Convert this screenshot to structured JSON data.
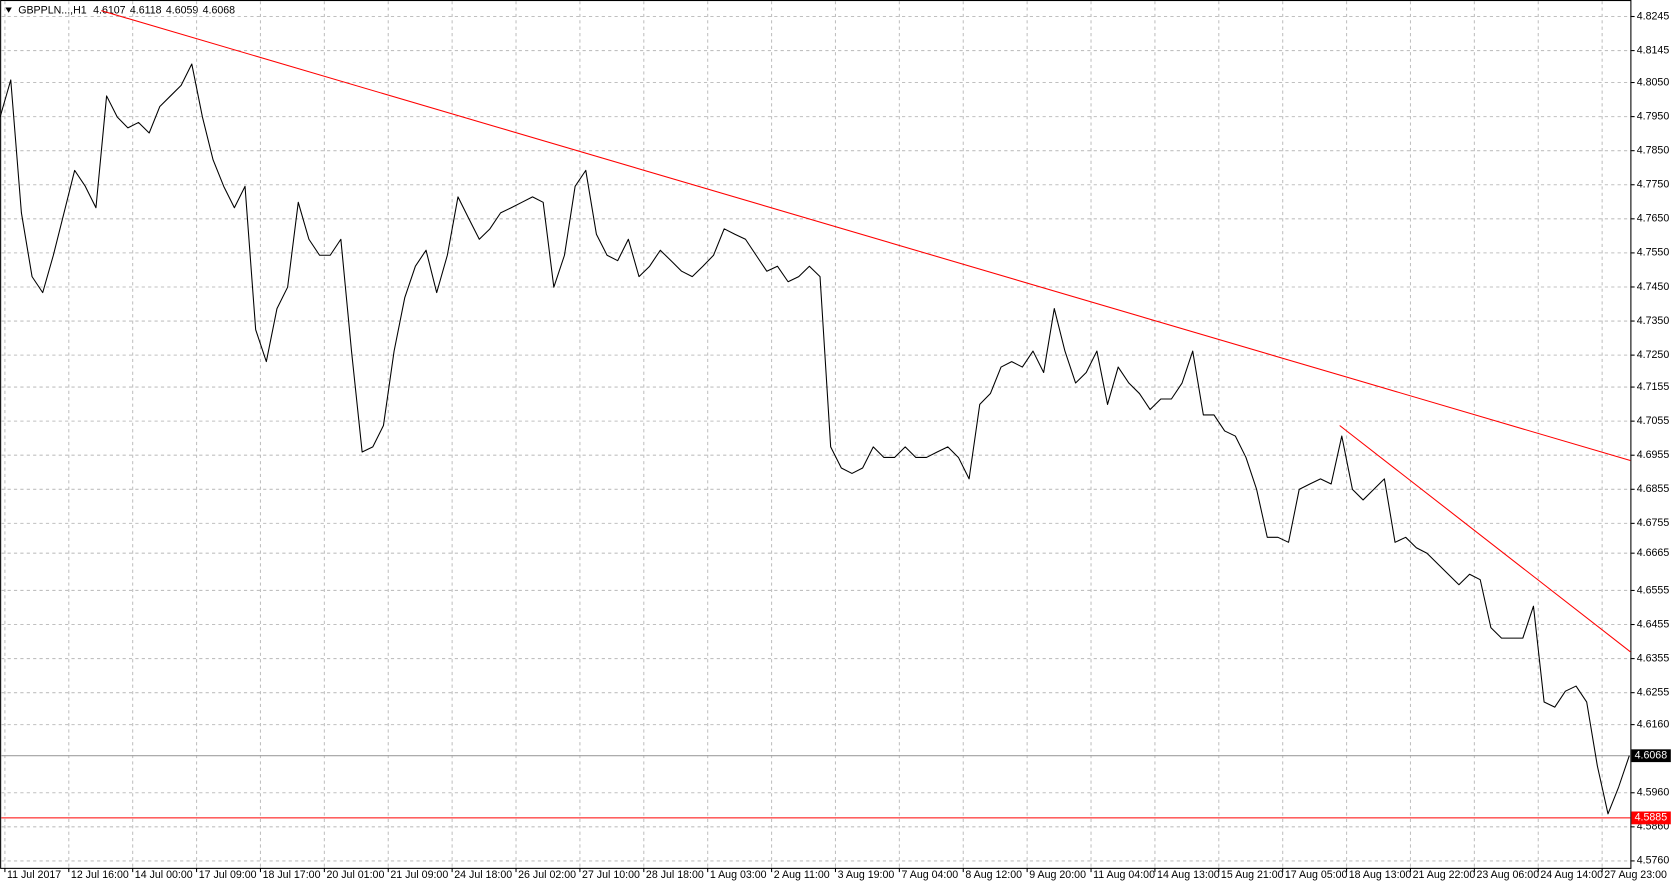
{
  "chart_data": {
    "type": "line",
    "title": "GBPPLN...,H1",
    "ohlc": [
      4.6107,
      4.6118,
      4.6059,
      4.6068
    ],
    "grid": true,
    "xlim": [
      0,
      153
    ],
    "ylim": [
      4.5738,
      4.8283
    ],
    "yticks": [
      {
        "value": 4.8245,
        "label": "4.8245"
      },
      {
        "value": 4.8145,
        "label": "4.8145"
      },
      {
        "value": 4.805,
        "label": "4.8050"
      },
      {
        "value": 4.795,
        "label": "4.7950"
      },
      {
        "value": 4.785,
        "label": "4.7850"
      },
      {
        "value": 4.775,
        "label": "4.7750"
      },
      {
        "value": 4.765,
        "label": "4.7650"
      },
      {
        "value": 4.755,
        "label": "4.7550"
      },
      {
        "value": 4.745,
        "label": "4.7450"
      },
      {
        "value": 4.735,
        "label": "4.7350"
      },
      {
        "value": 4.725,
        "label": "4.7250"
      },
      {
        "value": 4.7155,
        "label": "4.7155"
      },
      {
        "value": 4.7055,
        "label": "4.7055"
      },
      {
        "value": 4.6955,
        "label": "4.6955"
      },
      {
        "value": 4.6855,
        "label": "4.6855"
      },
      {
        "value": 4.6755,
        "label": "4.6755"
      },
      {
        "value": 4.6665,
        "label": "4.6665"
      },
      {
        "value": 4.6555,
        "label": "4.6555"
      },
      {
        "value": 4.6455,
        "label": "4.6455"
      },
      {
        "value": 4.6355,
        "label": "4.6355"
      },
      {
        "value": 4.6255,
        "label": "4.6255"
      },
      {
        "value": 4.616,
        "label": "4.6160"
      },
      {
        "value": 4.596,
        "label": "4.5960"
      },
      {
        "value": 4.586,
        "label": "4.5860"
      },
      {
        "value": 4.576,
        "label": "4.5760"
      }
    ],
    "xticks": [
      {
        "value": 0.4,
        "label": "11 Jul 2017"
      },
      {
        "value": 6.4,
        "label": "12 Jul 16:00"
      },
      {
        "value": 12.4,
        "label": "14 Jul 00:00"
      },
      {
        "value": 18.4,
        "label": "17 Jul 09:00"
      },
      {
        "value": 24.4,
        "label": "18 Jul 17:00"
      },
      {
        "value": 30.4,
        "label": "20 Jul 01:00"
      },
      {
        "value": 36.4,
        "label": "21 Jul 09:00"
      },
      {
        "value": 42.4,
        "label": "24 Jul 18:00"
      },
      {
        "value": 48.4,
        "label": "26 Jul 02:00"
      },
      {
        "value": 54.4,
        "label": "27 Jul 10:00"
      },
      {
        "value": 60.4,
        "label": "28 Jul 18:00"
      },
      {
        "value": 66.4,
        "label": "1 Aug 03:00"
      },
      {
        "value": 72.4,
        "label": "2 Aug 11:00"
      },
      {
        "value": 78.4,
        "label": "3 Aug 19:00"
      },
      {
        "value": 84.4,
        "label": "7 Aug 04:00"
      },
      {
        "value": 90.4,
        "label": "8 Aug 12:00"
      },
      {
        "value": 96.4,
        "label": "9 Aug 20:00"
      },
      {
        "value": 102.4,
        "label": "11 Aug 04:00"
      },
      {
        "value": 108.4,
        "label": "14 Aug 13:00"
      },
      {
        "value": 114.4,
        "label": "15 Aug 21:00"
      },
      {
        "value": 120.4,
        "label": "17 Aug 05:00"
      },
      {
        "value": 126.4,
        "label": "18 Aug 13:00"
      },
      {
        "value": 132.4,
        "label": "21 Aug 22:00"
      },
      {
        "value": 138.4,
        "label": "23 Aug 06:00"
      },
      {
        "value": 144.4,
        "label": "24 Aug 14:00"
      },
      {
        "value": 150.4,
        "label": "27 Aug 23:00"
      }
    ],
    "series": [
      {
        "color": "#000000",
        "values": [
          4.7948,
          4.8057,
          4.7666,
          4.7478,
          4.7431,
          4.7541,
          4.7666,
          4.7791,
          4.7744,
          4.7681,
          4.801,
          4.7948,
          4.7916,
          4.7932,
          4.7901,
          4.7979,
          4.801,
          4.8041,
          4.8104,
          4.7948,
          4.7822,
          4.7744,
          4.7681,
          4.7744,
          4.7322,
          4.7228,
          4.7384,
          4.7447,
          4.7697,
          4.7588,
          4.7541,
          4.7541,
          4.7588,
          4.7259,
          4.6962,
          4.6977,
          4.704,
          4.7259,
          4.7416,
          4.7509,
          4.7556,
          4.7431,
          4.7541,
          4.7713,
          4.765,
          4.7588,
          4.7619,
          4.7666,
          4.7681,
          4.7697,
          4.7713,
          4.7697,
          4.7447,
          4.7541,
          4.7744,
          4.7791,
          4.7603,
          4.7541,
          4.7525,
          4.7588,
          4.7478,
          4.7509,
          4.7556,
          4.7525,
          4.7494,
          4.7478,
          4.7509,
          4.7541,
          4.7619,
          4.7603,
          4.7588,
          4.7541,
          4.7494,
          4.7509,
          4.7463,
          4.7478,
          4.7509,
          4.7478,
          4.6977,
          4.6915,
          4.6899,
          4.6915,
          4.6977,
          4.6946,
          4.6946,
          4.6977,
          4.6946,
          4.6946,
          4.6962,
          4.6977,
          4.6946,
          4.6883,
          4.7102,
          4.7134,
          4.7212,
          4.7228,
          4.7212,
          4.7259,
          4.7196,
          4.7384,
          4.7259,
          4.7165,
          4.7196,
          4.7259,
          4.7102,
          4.7212,
          4.7165,
          4.7134,
          4.7087,
          4.7118,
          4.7118,
          4.7165,
          4.7259,
          4.7071,
          4.7071,
          4.7024,
          4.7009,
          4.6946,
          4.6852,
          4.6711,
          4.6711,
          4.6696,
          4.6852,
          4.6868,
          4.6883,
          4.6868,
          4.7009,
          4.6852,
          4.6821,
          4.6852,
          4.6883,
          4.6696,
          4.6711,
          4.668,
          4.6664,
          4.6633,
          4.6602,
          4.6571,
          4.6602,
          4.6586,
          4.6445,
          4.6414,
          4.6414,
          4.6414,
          4.6508,
          4.6226,
          4.6211,
          4.6258,
          4.6273,
          4.6226,
          4.6038,
          4.5897,
          4.5976,
          4.6068
        ]
      }
    ],
    "trendlines": [
      {
        "color": "#ff0000",
        "x": [
          9.5,
          153.1
        ],
        "values": [
          4.8261,
          4.6937
        ]
      },
      {
        "color": "#ff0000",
        "x": [
          125.8,
          153.1
        ],
        "values": [
          4.704,
          4.6374
        ]
      }
    ],
    "hline": {
      "value": 4.5885,
      "label": "4.5885",
      "color": "#ff0000"
    },
    "current_price": {
      "value": 4.6068,
      "label": "4.6068",
      "color": "#000000"
    }
  }
}
